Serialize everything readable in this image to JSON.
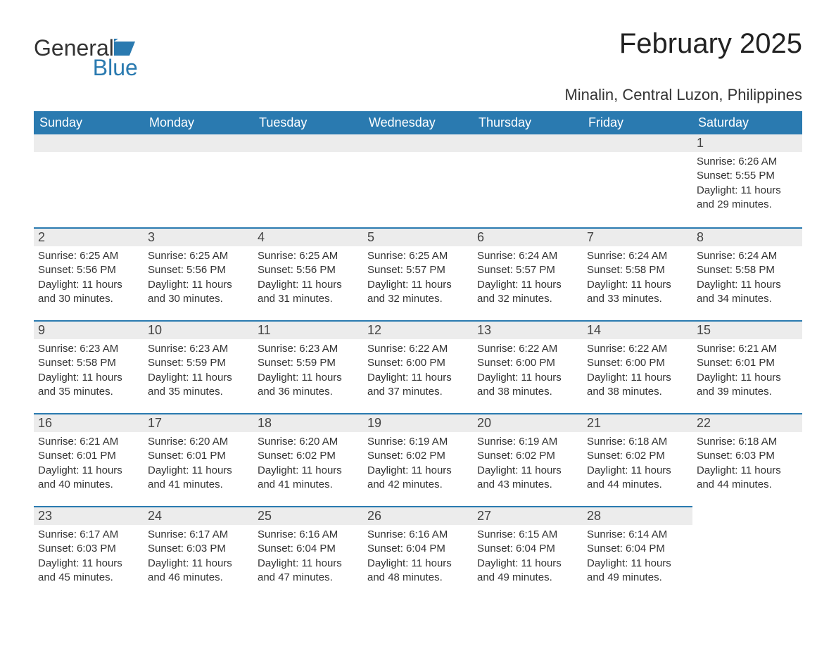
{
  "brand": {
    "word1": "General",
    "word2": "Blue",
    "logo_color": "#2a7ab0",
    "text_color": "#333333"
  },
  "title": "February 2025",
  "location": "Minalin, Central Luzon, Philippines",
  "colors": {
    "header_bg": "#2a7ab0",
    "header_text": "#ffffff",
    "daynum_bg": "#ececec",
    "row_border": "#2a7ab0",
    "body_bg": "#ffffff",
    "text": "#333333"
  },
  "layout": {
    "columns": 7,
    "rows": 5,
    "first_weekday": "Sunday"
  },
  "weekdays": [
    "Sunday",
    "Monday",
    "Tuesday",
    "Wednesday",
    "Thursday",
    "Friday",
    "Saturday"
  ],
  "weeks": [
    [
      {
        "blank": true
      },
      {
        "blank": true
      },
      {
        "blank": true
      },
      {
        "blank": true
      },
      {
        "blank": true
      },
      {
        "blank": true
      },
      {
        "n": "1",
        "sunrise": "Sunrise: 6:26 AM",
        "sunset": "Sunset: 5:55 PM",
        "daylight": "Daylight: 11 hours and 29 minutes."
      }
    ],
    [
      {
        "n": "2",
        "sunrise": "Sunrise: 6:25 AM",
        "sunset": "Sunset: 5:56 PM",
        "daylight": "Daylight: 11 hours and 30 minutes."
      },
      {
        "n": "3",
        "sunrise": "Sunrise: 6:25 AM",
        "sunset": "Sunset: 5:56 PM",
        "daylight": "Daylight: 11 hours and 30 minutes."
      },
      {
        "n": "4",
        "sunrise": "Sunrise: 6:25 AM",
        "sunset": "Sunset: 5:56 PM",
        "daylight": "Daylight: 11 hours and 31 minutes."
      },
      {
        "n": "5",
        "sunrise": "Sunrise: 6:25 AM",
        "sunset": "Sunset: 5:57 PM",
        "daylight": "Daylight: 11 hours and 32 minutes."
      },
      {
        "n": "6",
        "sunrise": "Sunrise: 6:24 AM",
        "sunset": "Sunset: 5:57 PM",
        "daylight": "Daylight: 11 hours and 32 minutes."
      },
      {
        "n": "7",
        "sunrise": "Sunrise: 6:24 AM",
        "sunset": "Sunset: 5:58 PM",
        "daylight": "Daylight: 11 hours and 33 minutes."
      },
      {
        "n": "8",
        "sunrise": "Sunrise: 6:24 AM",
        "sunset": "Sunset: 5:58 PM",
        "daylight": "Daylight: 11 hours and 34 minutes."
      }
    ],
    [
      {
        "n": "9",
        "sunrise": "Sunrise: 6:23 AM",
        "sunset": "Sunset: 5:58 PM",
        "daylight": "Daylight: 11 hours and 35 minutes."
      },
      {
        "n": "10",
        "sunrise": "Sunrise: 6:23 AM",
        "sunset": "Sunset: 5:59 PM",
        "daylight": "Daylight: 11 hours and 35 minutes."
      },
      {
        "n": "11",
        "sunrise": "Sunrise: 6:23 AM",
        "sunset": "Sunset: 5:59 PM",
        "daylight": "Daylight: 11 hours and 36 minutes."
      },
      {
        "n": "12",
        "sunrise": "Sunrise: 6:22 AM",
        "sunset": "Sunset: 6:00 PM",
        "daylight": "Daylight: 11 hours and 37 minutes."
      },
      {
        "n": "13",
        "sunrise": "Sunrise: 6:22 AM",
        "sunset": "Sunset: 6:00 PM",
        "daylight": "Daylight: 11 hours and 38 minutes."
      },
      {
        "n": "14",
        "sunrise": "Sunrise: 6:22 AM",
        "sunset": "Sunset: 6:00 PM",
        "daylight": "Daylight: 11 hours and 38 minutes."
      },
      {
        "n": "15",
        "sunrise": "Sunrise: 6:21 AM",
        "sunset": "Sunset: 6:01 PM",
        "daylight": "Daylight: 11 hours and 39 minutes."
      }
    ],
    [
      {
        "n": "16",
        "sunrise": "Sunrise: 6:21 AM",
        "sunset": "Sunset: 6:01 PM",
        "daylight": "Daylight: 11 hours and 40 minutes."
      },
      {
        "n": "17",
        "sunrise": "Sunrise: 6:20 AM",
        "sunset": "Sunset: 6:01 PM",
        "daylight": "Daylight: 11 hours and 41 minutes."
      },
      {
        "n": "18",
        "sunrise": "Sunrise: 6:20 AM",
        "sunset": "Sunset: 6:02 PM",
        "daylight": "Daylight: 11 hours and 41 minutes."
      },
      {
        "n": "19",
        "sunrise": "Sunrise: 6:19 AM",
        "sunset": "Sunset: 6:02 PM",
        "daylight": "Daylight: 11 hours and 42 minutes."
      },
      {
        "n": "20",
        "sunrise": "Sunrise: 6:19 AM",
        "sunset": "Sunset: 6:02 PM",
        "daylight": "Daylight: 11 hours and 43 minutes."
      },
      {
        "n": "21",
        "sunrise": "Sunrise: 6:18 AM",
        "sunset": "Sunset: 6:02 PM",
        "daylight": "Daylight: 11 hours and 44 minutes."
      },
      {
        "n": "22",
        "sunrise": "Sunrise: 6:18 AM",
        "sunset": "Sunset: 6:03 PM",
        "daylight": "Daylight: 11 hours and 44 minutes."
      }
    ],
    [
      {
        "n": "23",
        "sunrise": "Sunrise: 6:17 AM",
        "sunset": "Sunset: 6:03 PM",
        "daylight": "Daylight: 11 hours and 45 minutes."
      },
      {
        "n": "24",
        "sunrise": "Sunrise: 6:17 AM",
        "sunset": "Sunset: 6:03 PM",
        "daylight": "Daylight: 11 hours and 46 minutes."
      },
      {
        "n": "25",
        "sunrise": "Sunrise: 6:16 AM",
        "sunset": "Sunset: 6:04 PM",
        "daylight": "Daylight: 11 hours and 47 minutes."
      },
      {
        "n": "26",
        "sunrise": "Sunrise: 6:16 AM",
        "sunset": "Sunset: 6:04 PM",
        "daylight": "Daylight: 11 hours and 48 minutes."
      },
      {
        "n": "27",
        "sunrise": "Sunrise: 6:15 AM",
        "sunset": "Sunset: 6:04 PM",
        "daylight": "Daylight: 11 hours and 49 minutes."
      },
      {
        "n": "28",
        "sunrise": "Sunrise: 6:14 AM",
        "sunset": "Sunset: 6:04 PM",
        "daylight": "Daylight: 11 hours and 49 minutes."
      },
      {
        "blank": true,
        "trailing": true
      }
    ]
  ]
}
